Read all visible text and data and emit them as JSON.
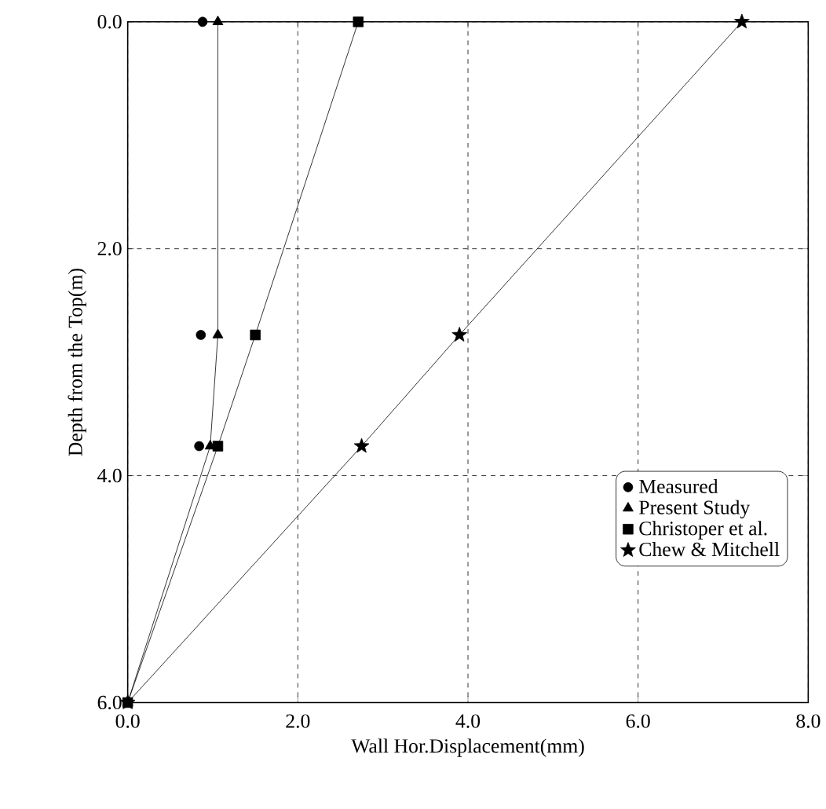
{
  "chart_data": {
    "type": "line",
    "xlabel": "Wall Hor.Displacement(mm)",
    "ylabel": "Depth from the Top(m)",
    "xlim": [
      0,
      8
    ],
    "ylim": [
      6,
      0
    ],
    "xticks": [
      {
        "value": 0,
        "label": "0.0"
      },
      {
        "value": 2,
        "label": "2.0"
      },
      {
        "value": 4,
        "label": "4.0"
      },
      {
        "value": 6,
        "label": "6.0"
      },
      {
        "value": 8,
        "label": "8.0"
      }
    ],
    "yticks": [
      {
        "value": 0,
        "label": "0.0"
      },
      {
        "value": 2,
        "label": "2.0"
      },
      {
        "value": 4,
        "label": "4.0"
      },
      {
        "value": 6,
        "label": "6.0"
      }
    ],
    "grid": true,
    "legend": "bottom right",
    "series": [
      {
        "name": "Measured",
        "type": "scatter",
        "marker": "circle",
        "color": "#000000",
        "x": [
          0.88,
          0.86,
          0.84
        ],
        "values": [
          0,
          2.76,
          3.74
        ]
      },
      {
        "name": "Present Study",
        "marker": "triangle",
        "color": "#000000",
        "x": [
          1.06,
          1.06,
          0.97,
          0
        ],
        "values": [
          0,
          2.76,
          3.74,
          6
        ]
      },
      {
        "name": "Christoper et al.",
        "marker": "square",
        "color": "#000000",
        "x": [
          2.71,
          1.5,
          1.06,
          0
        ],
        "values": [
          0,
          2.76,
          3.74,
          6
        ]
      },
      {
        "name": "Chew & Mitchell",
        "marker": "star",
        "color": "#000000",
        "x": [
          7.22,
          3.9,
          2.75,
          0
        ],
        "values": [
          0,
          2.76,
          3.74,
          6
        ]
      }
    ]
  }
}
